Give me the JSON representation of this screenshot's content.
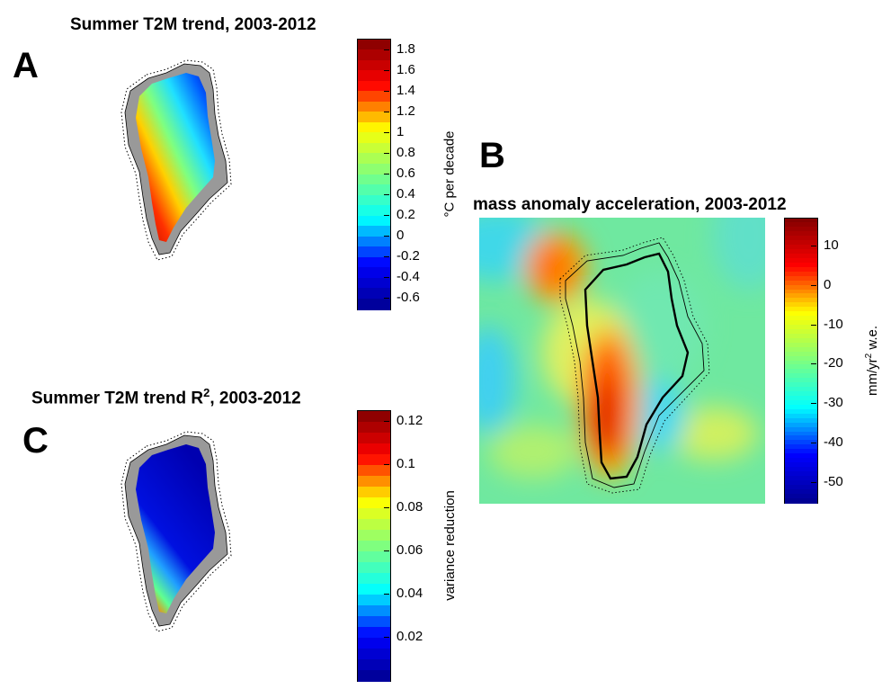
{
  "panels": {
    "a": {
      "letter": "A",
      "title": "Summer T2M trend, 2003-2012",
      "colorbar": {
        "label": "°C per decade",
        "ticks": [
          "1.8",
          "1.6",
          "1.4",
          "1.2",
          "1",
          "0.8",
          "0.6",
          "0.4",
          "0.2",
          "0",
          "-0.2",
          "-0.4",
          "-0.6"
        ],
        "min": -0.7,
        "max": 1.9,
        "steps": 26
      }
    },
    "b": {
      "letter": "B",
      "title": "mass anomaly acceleration, 2003-2012",
      "colorbar": {
        "label_pre": "mm/yr",
        "label_sup": "2",
        "label_post": " w.e.",
        "ticks": [
          "10",
          "0",
          "-10",
          "-20",
          "-30",
          "-40",
          "-50"
        ],
        "min": -55,
        "max": 17,
        "steps": 64
      }
    },
    "c": {
      "letter": "C",
      "title_pre": "Summer T2M trend R",
      "title_sup": "2",
      "title_post": ", 2003-2012",
      "colorbar": {
        "label": "variance reduction",
        "ticks": [
          "0.12",
          "0.1",
          "0.08",
          "0.06",
          "0.04",
          "0.02"
        ],
        "min": 0.0,
        "max": 0.125,
        "steps": 25
      }
    }
  },
  "colors": {
    "jet": [
      "#00008f",
      "#0000ff",
      "#00ffff",
      "#7fff7f",
      "#ffff00",
      "#ff0000",
      "#800000"
    ],
    "ocean_mask": "#999999",
    "coastline": "#000000"
  }
}
